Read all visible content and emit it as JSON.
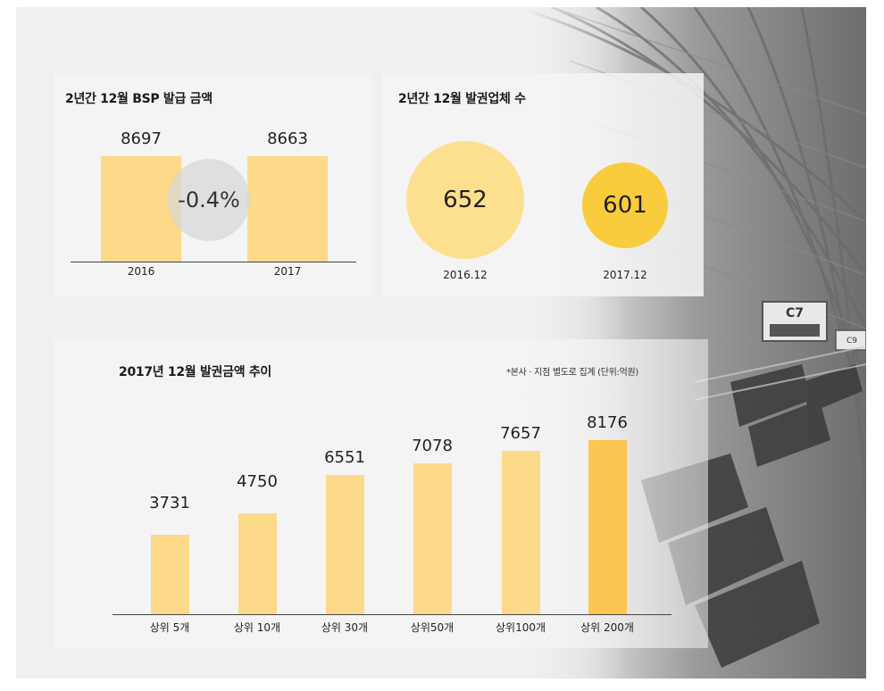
{
  "colors": {
    "bar": "#fdd98a",
    "bar_highlight": "#fdc552",
    "bubble_2016": "#fde08f",
    "bubble_2017": "#f9cc3e"
  },
  "bsp": {
    "title": "2년간 12월 BSP 발급 금액",
    "change_label": "-0.4%"
  },
  "issuers": {
    "title": "2년간 12월 발권업체 수"
  },
  "trend": {
    "title": "2017년 12월 발권금액 추이",
    "note": "*본사 · 지점 별도로 집계 (단위:억원)"
  },
  "chart_data": [
    {
      "type": "bar",
      "title": "2년간 12월 BSP 발급 금액",
      "categories": [
        "2016",
        "2017"
      ],
      "values": [
        8697,
        8663
      ],
      "ylim": [
        0,
        10000
      ],
      "grid": false,
      "annotations": [
        "-0.4%"
      ]
    },
    {
      "type": "scatter",
      "title": "2년간 12월 발권업체 수",
      "categories": [
        "2016.12",
        "2017.12"
      ],
      "values": [
        652,
        601
      ]
    },
    {
      "type": "bar",
      "title": "2017년 12월 발권금액 추이",
      "categories": [
        "상위 5개",
        "상위 10개",
        "상위 30개",
        "상위50개",
        "상위100개",
        "상위 200개"
      ],
      "values": [
        3731,
        4750,
        6551,
        7078,
        7657,
        8176
      ],
      "ylim": [
        0,
        9500
      ],
      "grid": false
    }
  ]
}
